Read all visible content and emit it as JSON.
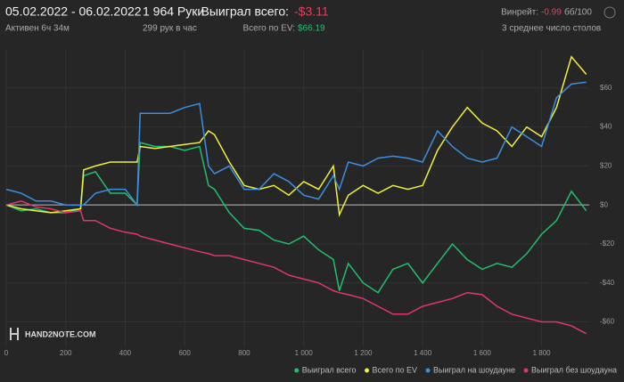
{
  "header": {
    "dates": "05.02.2022 - 06.02.2022",
    "active": "Активен 6ч 34м",
    "hands": "1 964 Руки",
    "hands_per_hour": "299 рук в час",
    "won_label": "Выиграл всего:",
    "won_value": "-$3.11",
    "ev_label": "Всего по EV:",
    "ev_value": "$66.19",
    "winrate_label": "Винрейт:",
    "winrate_value": "-0.99",
    "winrate_unit": "бб/100",
    "tables": "3 среднее число столов"
  },
  "logo": "HAND2NOTE.COM",
  "chart_data": {
    "type": "line",
    "x": [
      0,
      50,
      100,
      150,
      200,
      250,
      260,
      300,
      350,
      400,
      440,
      450,
      500,
      550,
      600,
      650,
      680,
      700,
      750,
      800,
      850,
      900,
      950,
      1000,
      1050,
      1100,
      1120,
      1150,
      1200,
      1250,
      1300,
      1350,
      1400,
      1450,
      1500,
      1550,
      1600,
      1650,
      1700,
      1750,
      1800,
      1850,
      1900,
      1950
    ],
    "series": [
      {
        "name": "Выиграл всего",
        "color": "#1fbf6f",
        "values": [
          0,
          -3,
          -2,
          -4,
          -4,
          -2,
          15,
          17,
          6,
          6,
          0,
          32,
          30,
          30,
          28,
          30,
          10,
          8,
          -4,
          -12,
          -13,
          -18,
          -20,
          -16,
          -23,
          -28,
          -44,
          -30,
          -40,
          -45,
          -33,
          -30,
          -40,
          -30,
          -20,
          -28,
          -33,
          -30,
          -32,
          -25,
          -15,
          -8,
          7,
          -3
        ]
      },
      {
        "name": "Всего по EV",
        "color": "#f0f03c",
        "values": [
          0,
          -2,
          -3,
          -4,
          -3,
          -2,
          18,
          20,
          22,
          22,
          22,
          30,
          29,
          30,
          31,
          32,
          38,
          36,
          22,
          10,
          8,
          10,
          5,
          12,
          8,
          20,
          -5,
          5,
          10,
          6,
          10,
          8,
          10,
          28,
          40,
          50,
          42,
          38,
          30,
          40,
          35,
          50,
          76,
          67
        ]
      },
      {
        "name": "Выиграл на шоудауне",
        "color": "#3b8fe0",
        "values": [
          8,
          6,
          2,
          2,
          0,
          0,
          0,
          6,
          8,
          8,
          0,
          47,
          47,
          47,
          50,
          52,
          20,
          16,
          20,
          8,
          8,
          16,
          12,
          5,
          3,
          15,
          8,
          22,
          20,
          24,
          25,
          24,
          22,
          38,
          30,
          24,
          22,
          24,
          40,
          35,
          30,
          55,
          62,
          63
        ]
      },
      {
        "name": "Выиграл без шоудауна",
        "color": "#e0356f",
        "values": [
          0,
          2,
          -1,
          -2,
          -4,
          -3,
          -8,
          -8,
          -12,
          -14,
          -15,
          -16,
          -18,
          -20,
          -22,
          -24,
          -25,
          -26,
          -26,
          -28,
          -30,
          -32,
          -36,
          -38,
          -40,
          -44,
          -45,
          -46,
          -48,
          -52,
          -56,
          -56,
          -52,
          -50,
          -48,
          -45,
          -46,
          -52,
          -56,
          -58,
          -60,
          -60,
          -62,
          -66
        ]
      }
    ],
    "xlim": [
      0,
      1960
    ],
    "xticks": [
      0,
      200,
      400,
      600,
      800,
      {
        "value": 1000,
        "label": "1 000"
      },
      {
        "value": 1200,
        "label": "1 200"
      },
      {
        "value": 1400,
        "label": "1 400"
      },
      {
        "value": 1600,
        "label": "1 600"
      },
      {
        "value": 1800,
        "label": "1 800"
      }
    ],
    "ylim": [
      -73,
      80
    ],
    "yticks": [
      {
        "value": -60,
        "label": "-$60"
      },
      {
        "value": -40,
        "label": "-$40"
      },
      {
        "value": -20,
        "label": "-$20"
      },
      {
        "value": 0,
        "label": "$0"
      },
      {
        "value": 20,
        "label": "$20"
      },
      {
        "value": 40,
        "label": "$40"
      },
      {
        "value": 60,
        "label": "$60"
      }
    ],
    "grid": true,
    "legend": "bottom-right"
  }
}
